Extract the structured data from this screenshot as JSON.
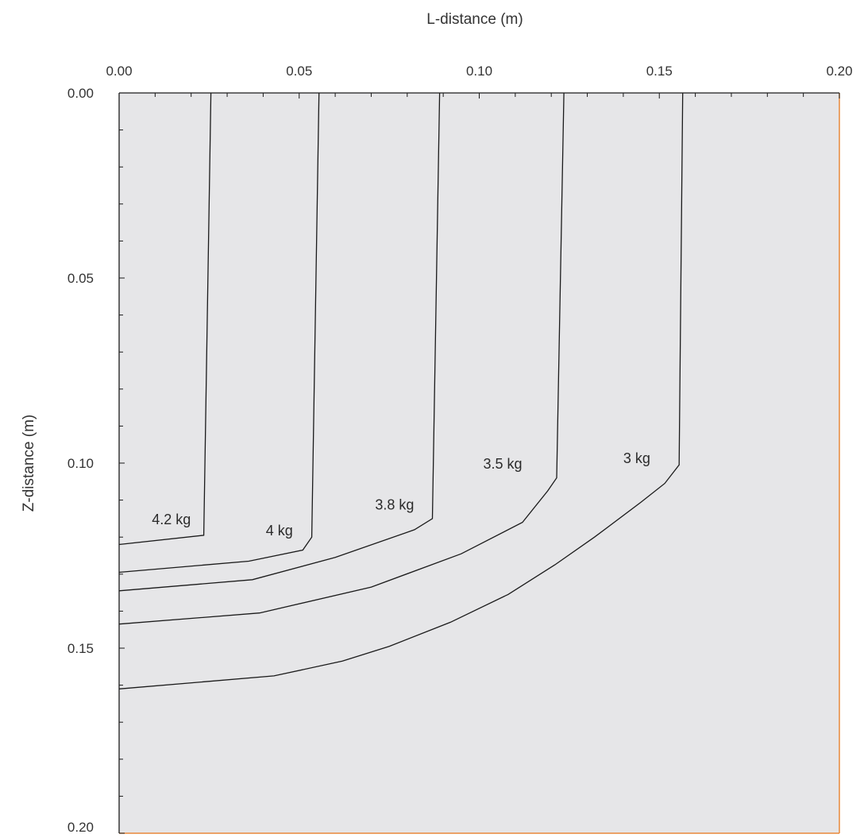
{
  "chart_data": {
    "type": "line",
    "title": "",
    "xlabel": "L-distance (m)",
    "ylabel": "Z-distance (m)",
    "xlim": [
      0,
      0.2
    ],
    "ylim": [
      0,
      0.2
    ],
    "y_axis_inverted": true,
    "x_axis_position": "top",
    "grid": false,
    "x_ticks": [
      "0.00",
      "0.05",
      "0.10",
      "0.15",
      "0.20"
    ],
    "y_ticks": [
      "0.00",
      "0.05",
      "0.10",
      "0.15",
      "0.20"
    ],
    "colors": {
      "plot_background": "#e6e6e8",
      "line": "#1a1a1a",
      "axis": "#1a1a1a",
      "frame_right_bottom": "#e8893a"
    },
    "series": [
      {
        "name": "4.2 kg",
        "x": [
          0.0,
          0.0235,
          0.0255
        ],
        "y": [
          0.122,
          0.1195,
          0.0
        ],
        "label_at": [
          0.0145,
          0.1165
        ]
      },
      {
        "name": "4 kg",
        "x": [
          0.0,
          0.036,
          0.051,
          0.0535,
          0.0555
        ],
        "y": [
          0.1295,
          0.1265,
          0.1235,
          0.12,
          0.0
        ],
        "label_at": [
          0.0445,
          0.1195
        ]
      },
      {
        "name": "3.8 kg",
        "x": [
          0.0,
          0.037,
          0.06,
          0.082,
          0.087,
          0.089
        ],
        "y": [
          0.1345,
          0.1315,
          0.1255,
          0.118,
          0.115,
          0.0
        ],
        "label_at": [
          0.0765,
          0.1125
        ]
      },
      {
        "name": "3.5 kg",
        "x": [
          0.0,
          0.039,
          0.07,
          0.095,
          0.112,
          0.119,
          0.1215,
          0.1235
        ],
        "y": [
          0.1435,
          0.1405,
          0.1335,
          0.1245,
          0.116,
          0.1075,
          0.104,
          0.0
        ],
        "label_at": [
          0.1065,
          0.1015
        ]
      },
      {
        "name": "3 kg",
        "x": [
          0.0,
          0.043,
          0.062,
          0.075,
          0.092,
          0.108,
          0.121,
          0.132,
          0.145,
          0.1515,
          0.1555,
          0.1565
        ],
        "y": [
          0.161,
          0.1575,
          0.1535,
          0.1495,
          0.143,
          0.1355,
          0.1275,
          0.12,
          0.1105,
          0.1055,
          0.1005,
          0.0
        ],
        "label_at": [
          0.1475,
          0.1
        ],
        "label_anchor": "end"
      }
    ]
  }
}
